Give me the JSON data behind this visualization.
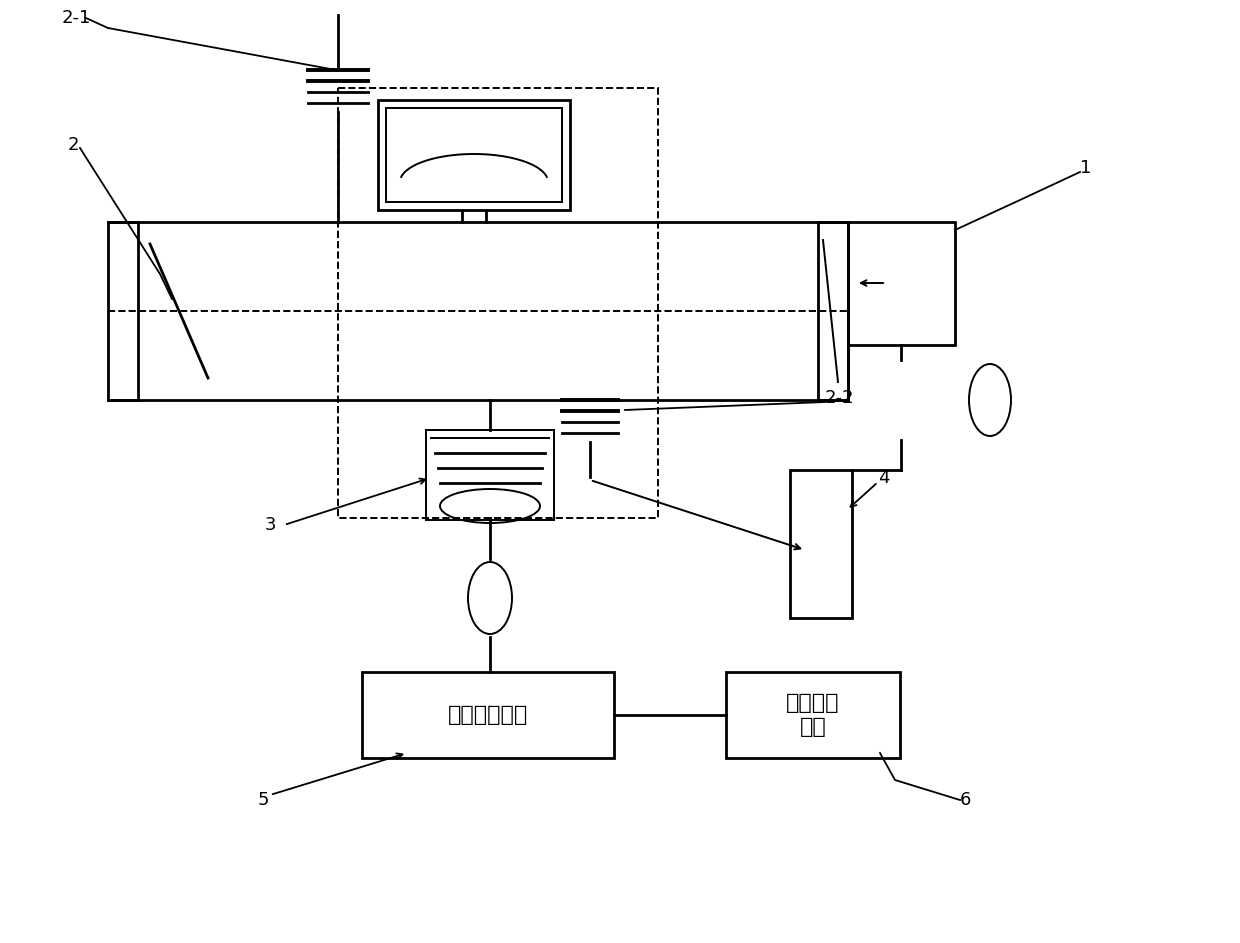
{
  "bg_color": "#ffffff",
  "line_color": "#000000",
  "box5_text": "信号解调模块",
  "box6_text": "信号处理\n单元",
  "font_size_chinese": 16,
  "font_size_label": 13,
  "figw": 12.4,
  "figh": 9.43,
  "dpi": 100
}
